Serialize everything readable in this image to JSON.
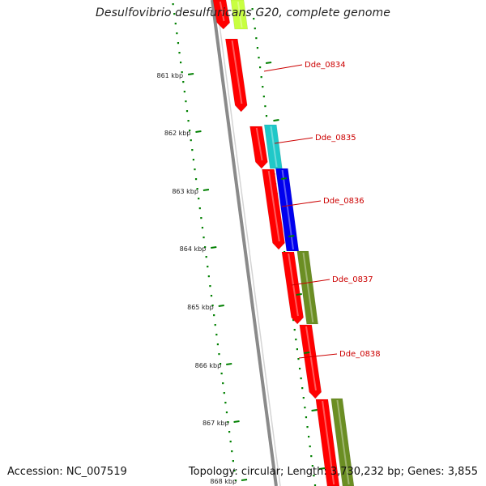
{
  "title": "Desulfovibrio desulfuricans G20, complete genome",
  "footer": {
    "accession": "Accession: NC_007519",
    "summary": "Topology: circular; Length: 3,730,232 bp; Genes: 3,855"
  },
  "ticks": [
    {
      "label": "861 kbp"
    },
    {
      "label": "862 kbp"
    },
    {
      "label": "863 kbp"
    },
    {
      "label": "864 kbp"
    },
    {
      "label": "865 kbp"
    },
    {
      "label": "866 kbp"
    },
    {
      "label": "867 kbp"
    },
    {
      "label": "868 kbp"
    }
  ],
  "genes": [
    {
      "label": "Dde_0834"
    },
    {
      "label": "Dde_0835"
    },
    {
      "label": "Dde_0836"
    },
    {
      "label": "Dde_0837"
    },
    {
      "label": "Dde_0838"
    }
  ],
  "colors": {
    "backbone": "#8a8a8a",
    "forward_gene": "#ff0000",
    "label": "#cc0000",
    "tick": "#008000",
    "cyan": "#20c8c8",
    "blue": "#0000ee",
    "olive": "#6b8e23",
    "yellowgreen": "#c8ff40"
  }
}
